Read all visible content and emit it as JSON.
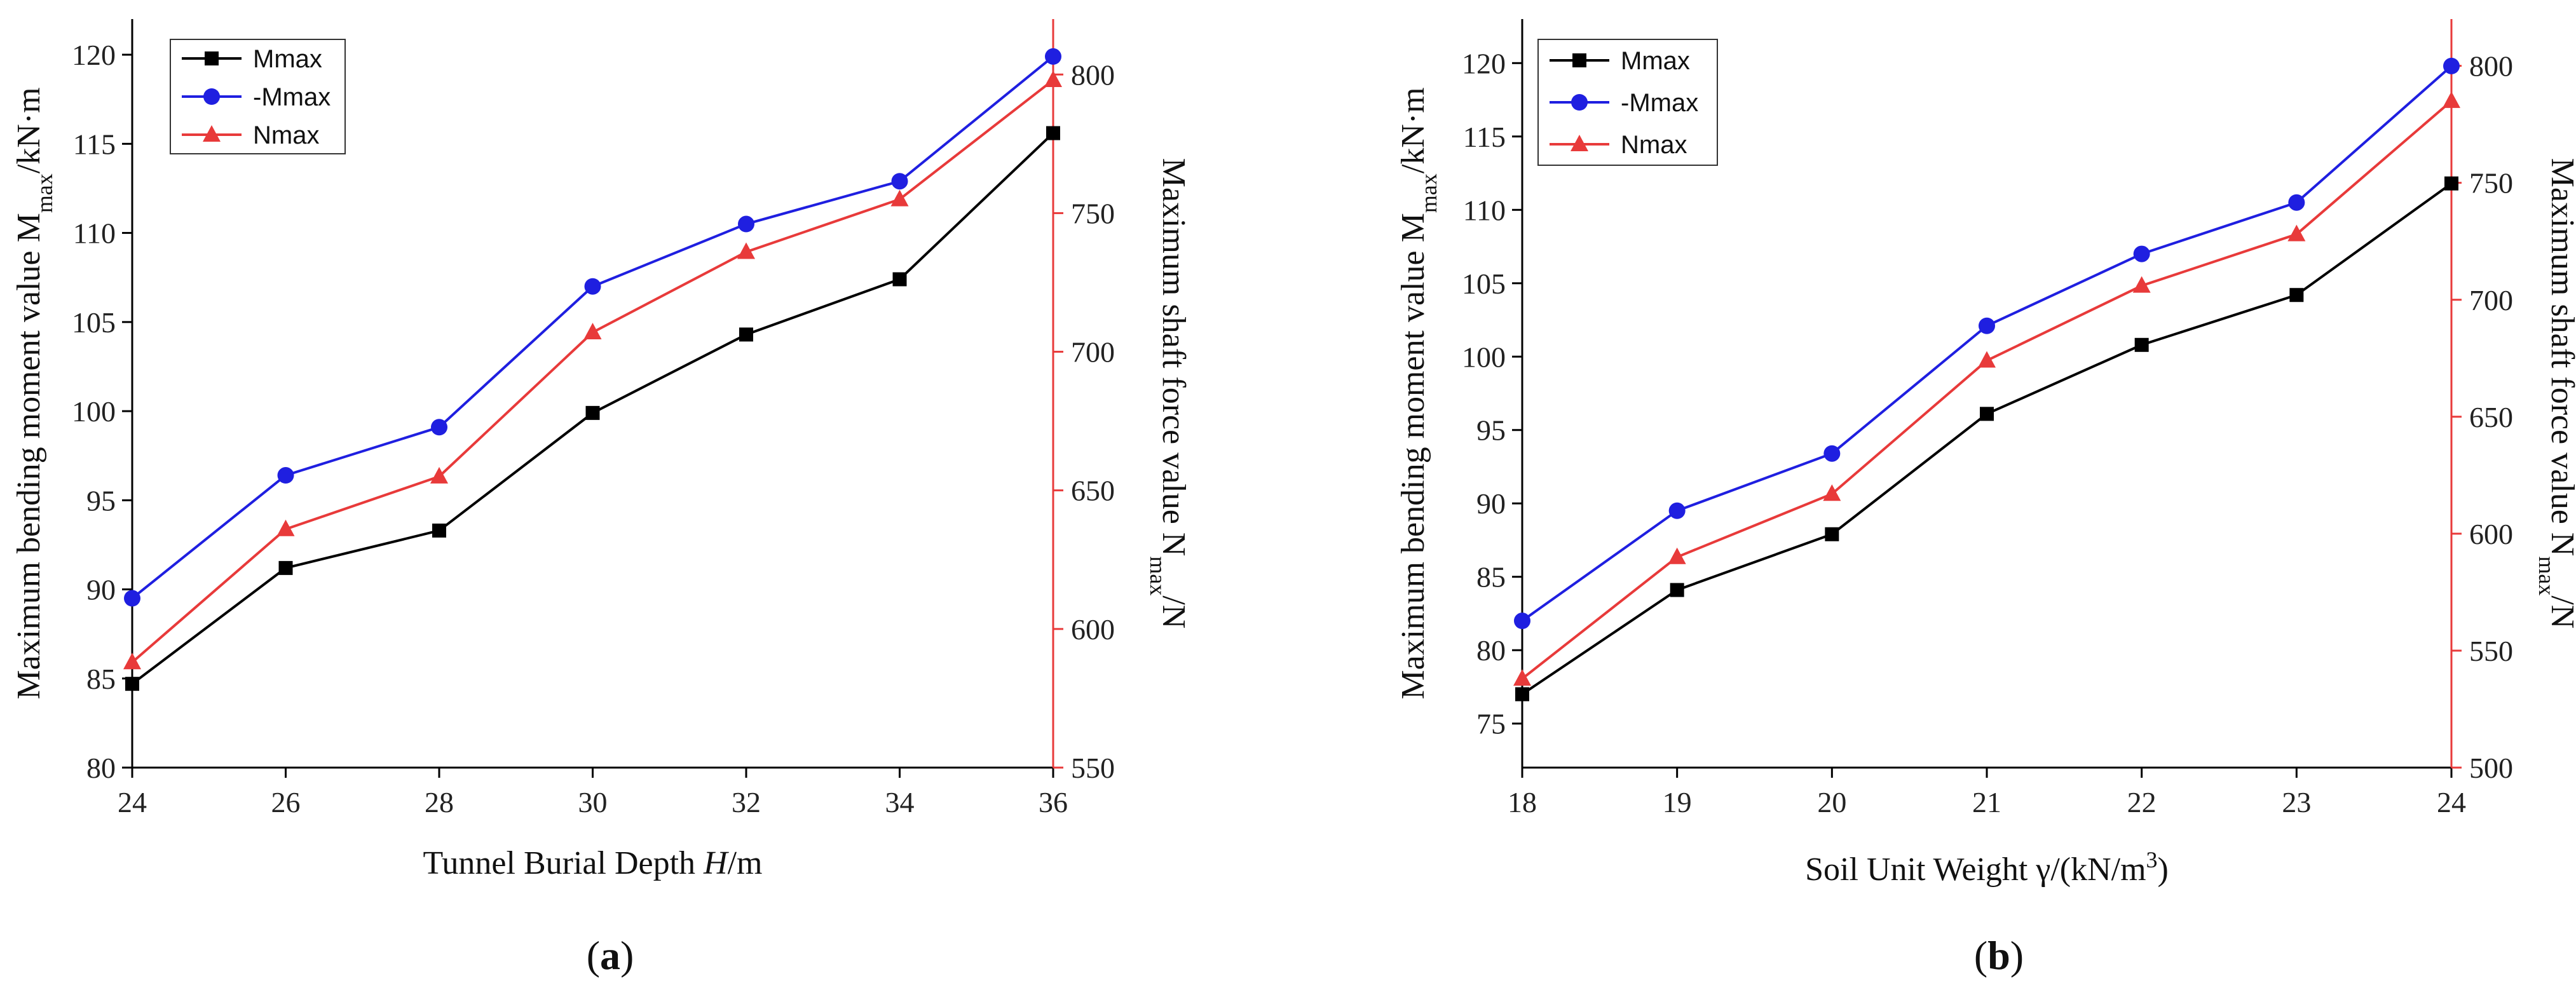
{
  "colors": {
    "Mmax": "#000000",
    "-Mmax": "#1f1fe0",
    "Nmax": "#e83a3a",
    "right_axis": "#e83a3a"
  },
  "chart_data": [
    {
      "type": "line",
      "panel_label": "(a)",
      "xlabel": "Tunnel Burial Depth H/m",
      "ylabel_left": "Maximum bending moment value Mmax/kN·m",
      "ylabel_right": "Maximum shaft force value Nmax/N",
      "xlim": [
        24,
        36
      ],
      "ylim_left": [
        80,
        122
      ],
      "ylim_right": [
        550,
        820
      ],
      "x": [
        24,
        26,
        28,
        30,
        32,
        34,
        36
      ],
      "xticks": [
        24,
        26,
        28,
        30,
        32,
        34,
        36
      ],
      "yticks_left": [
        80,
        85,
        90,
        95,
        100,
        105,
        110,
        115,
        120
      ],
      "yticks_right": [
        550,
        600,
        650,
        700,
        750,
        800
      ],
      "legend_position": "top-left",
      "series": [
        {
          "name": "Mmax",
          "axis": "left",
          "marker": "square",
          "values": [
            84.7,
            91.2,
            93.3,
            99.9,
            104.3,
            107.4,
            115.6
          ]
        },
        {
          "name": "-Mmax",
          "axis": "left",
          "marker": "circle",
          "values": [
            89.5,
            96.4,
            99.1,
            107.0,
            110.5,
            112.9,
            119.9
          ]
        },
        {
          "name": "Nmax",
          "axis": "right",
          "marker": "triangle",
          "values": [
            588,
            636,
            655,
            707,
            736,
            755,
            798
          ]
        }
      ]
    },
    {
      "type": "line",
      "panel_label": "(b)",
      "xlabel": "Soil Unit Weight γ/(kN/m3)",
      "ylabel_left": "Maximum bending moment value Mmax/kN·m",
      "ylabel_right": "Maximum shaft force value Nmax/N",
      "xlim": [
        18,
        24
      ],
      "ylim_left": [
        72,
        123
      ],
      "ylim_right": [
        500,
        820
      ],
      "x": [
        18,
        19,
        20,
        21,
        22,
        23,
        24
      ],
      "xticks": [
        18,
        19,
        20,
        21,
        22,
        23,
        24
      ],
      "yticks_left": [
        75,
        80,
        85,
        90,
        95,
        100,
        105,
        110,
        115,
        120
      ],
      "yticks_right": [
        500,
        550,
        600,
        650,
        700,
        750,
        800
      ],
      "legend_position": "top-left",
      "series": [
        {
          "name": "Mmax",
          "axis": "left",
          "marker": "square",
          "values": [
            77.0,
            84.1,
            87.9,
            96.1,
            100.8,
            104.2,
            111.8
          ]
        },
        {
          "name": "-Mmax",
          "axis": "left",
          "marker": "circle",
          "values": [
            82.0,
            89.5,
            93.4,
            102.1,
            107.0,
            110.5,
            119.8
          ]
        },
        {
          "name": "Nmax",
          "axis": "right",
          "marker": "triangle",
          "values": [
            538,
            590,
            617,
            674,
            706,
            728,
            785
          ]
        }
      ]
    }
  ]
}
